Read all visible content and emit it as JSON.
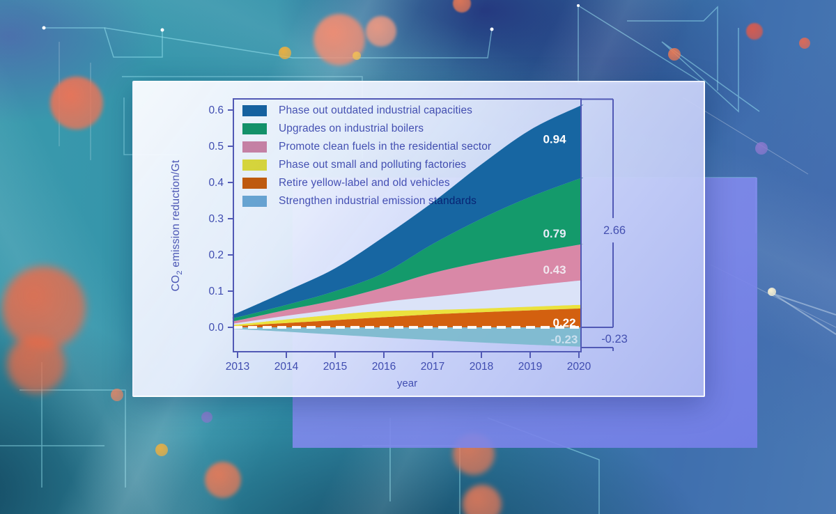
{
  "chart_data": {
    "type": "area",
    "stacked": true,
    "x": [
      2013,
      2014,
      2015,
      2016,
      2017,
      2018,
      2019,
      2020
    ],
    "xlabel": "year",
    "ylabel": "CO2 emission reduction/Gt",
    "ylabel_rich": {
      "pre": "CO",
      "sub": "2",
      "post": " emission reduction/Gt"
    },
    "ylim": [
      -0.067,
      0.63
    ],
    "ytick_labels": [
      "0.0",
      "0.1",
      "0.2",
      "0.3",
      "0.4",
      "0.5",
      "0.6"
    ],
    "ytick_values": [
      0.0,
      0.1,
      0.2,
      0.3,
      0.4,
      0.5,
      0.6
    ],
    "grid": false,
    "legend_position": "inside-top-left",
    "legend": [
      {
        "label": "Phase out outdated industrial capacities",
        "color": "#1766a2"
      },
      {
        "label": "Upgrades on industrial boilers",
        "color": "#149a6b"
      },
      {
        "label": "Promote clean fuels in the residential sector",
        "color": "#d988a7"
      },
      {
        "label": "Phase out small and polluting factories",
        "color": "#ebe23d"
      },
      {
        "label": "Retire yellow-label and old vehicles",
        "color": "#d3600f"
      },
      {
        "label": "Strengthen industrial emission standards",
        "color": "#72aed5"
      }
    ],
    "stack_bottom_to_top": [
      {
        "name": "Retire yellow-label and old vehicles",
        "color": "#d3600f",
        "values": [
          0.004,
          0.012,
          0.02,
          0.028,
          0.036,
          0.042,
          0.047,
          0.052
        ]
      },
      {
        "name": "Phase out small and polluting factories",
        "color": "#ebe23d",
        "values": [
          0.004,
          0.01,
          0.015,
          0.017,
          0.012,
          0.01,
          0.01,
          0.01
        ]
      },
      {
        "name": "Phase out small and polluting factories (pale fill band)",
        "color": "#dbe3f8",
        "values": [
          0.004,
          0.01,
          0.015,
          0.025,
          0.037,
          0.048,
          0.058,
          0.067
        ]
      },
      {
        "name": "Promote clean fuels in the residential sector",
        "color": "#d988a7",
        "values": [
          0.007,
          0.016,
          0.025,
          0.04,
          0.065,
          0.08,
          0.09,
          0.099
        ]
      },
      {
        "name": "Upgrades on industrial boilers",
        "color": "#149a6b",
        "values": [
          0.009,
          0.014,
          0.025,
          0.04,
          0.08,
          0.12,
          0.155,
          0.182
        ]
      },
      {
        "name": "Phase out outdated industrial capacities",
        "color": "#1766a2",
        "values": [
          0.012,
          0.038,
          0.063,
          0.1,
          0.115,
          0.15,
          0.185,
          0.2
        ]
      }
    ],
    "negative_series": {
      "name": "Strengthen industrial emission standards",
      "color": "#7cbacd",
      "values": [
        -0.005,
        -0.012,
        -0.02,
        -0.028,
        -0.035,
        -0.042,
        -0.048,
        -0.053
      ]
    },
    "zero_line": {
      "color": "#ffffff",
      "style": "dashed"
    },
    "area_value_labels": [
      {
        "text": "0.94",
        "x_year": 2019.5,
        "value": 0.52,
        "color": "#ffffff"
      },
      {
        "text": "0.79",
        "x_year": 2019.5,
        "value": 0.26,
        "color": "#e7ecf8"
      },
      {
        "text": "0.43",
        "x_year": 2019.5,
        "value": 0.16,
        "color": "#f1e7ef"
      },
      {
        "text": "0.22",
        "x_year": 2019.7,
        "value": 0.013,
        "color": "#ffffff"
      },
      {
        "text": "-0.23",
        "x_year": 2019.7,
        "value": -0.033,
        "color": "#cbe0ef"
      }
    ],
    "brackets": [
      {
        "label": "2.66",
        "from_value": 0.63,
        "to_value": 0.0,
        "label_value": 0.267
      },
      {
        "label": "-0.23",
        "from_value": 0.0,
        "to_value": -0.0558,
        "label_value": -0.0327
      }
    ],
    "axis_color": "#5159b5",
    "tick_text_color": "#3f4cb0",
    "bracket_text_color": "#4450b0"
  },
  "background": {
    "base_teal": "#3a9aad",
    "deep_navy": "#23307a",
    "steel_blue": "#4a79b4",
    "coral": "#ef7456",
    "amber": "#f0b03e",
    "violet_dot": "#8d7ad0",
    "circuit_line": "#9fe8f5",
    "panel_back": "#7d89e8",
    "panel_face": "#e9effd"
  }
}
